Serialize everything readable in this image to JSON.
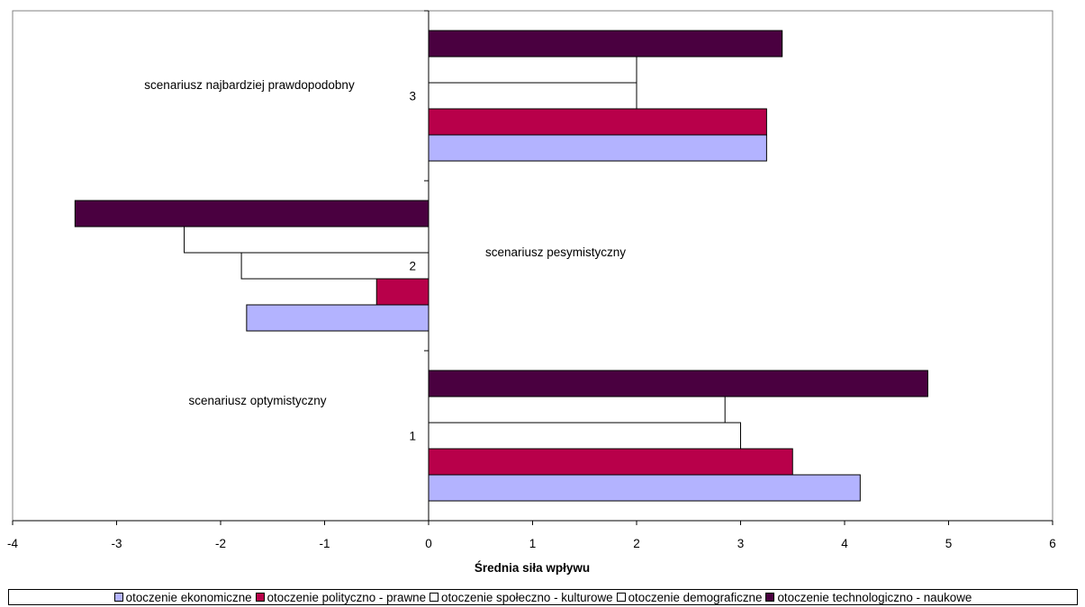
{
  "chart_data": {
    "type": "bar",
    "orientation": "horizontal",
    "categories": [
      "1",
      "2",
      "3"
    ],
    "category_annotations": [
      "scenariusz optymistyczny",
      "scenariusz pesymistyczny",
      "scenariusz najbardziej prawdopodobny"
    ],
    "series": [
      {
        "name": "otoczenie ekonomiczne",
        "color": "#b3b3ff",
        "values": [
          4.15,
          -1.75,
          3.25
        ]
      },
      {
        "name": "otoczenie polityczno - prawne",
        "color": "#b8004a",
        "values": [
          3.5,
          -0.5,
          3.25
        ]
      },
      {
        "name": "otoczenie społeczno - kulturowe",
        "color": "#ffffff",
        "values": [
          3.0,
          -1.8,
          2.0
        ]
      },
      {
        "name": "otoczenie demograficzne",
        "color": "#ffffff",
        "values": [
          2.85,
          -2.35,
          2.0
        ]
      },
      {
        "name": "otoczenie technologiczno - naukowe",
        "color": "#4a0040",
        "values": [
          4.8,
          -3.4,
          3.4
        ]
      }
    ],
    "xlabel": "Średnia siła wpływu",
    "ylabel": "",
    "xlim": [
      -4,
      6
    ],
    "xticks": [
      "-4",
      "-3",
      "-2",
      "-1",
      "0",
      "1",
      "2",
      "3",
      "4",
      "5",
      "6"
    ],
    "grid": false,
    "legend_position": "bottom"
  }
}
